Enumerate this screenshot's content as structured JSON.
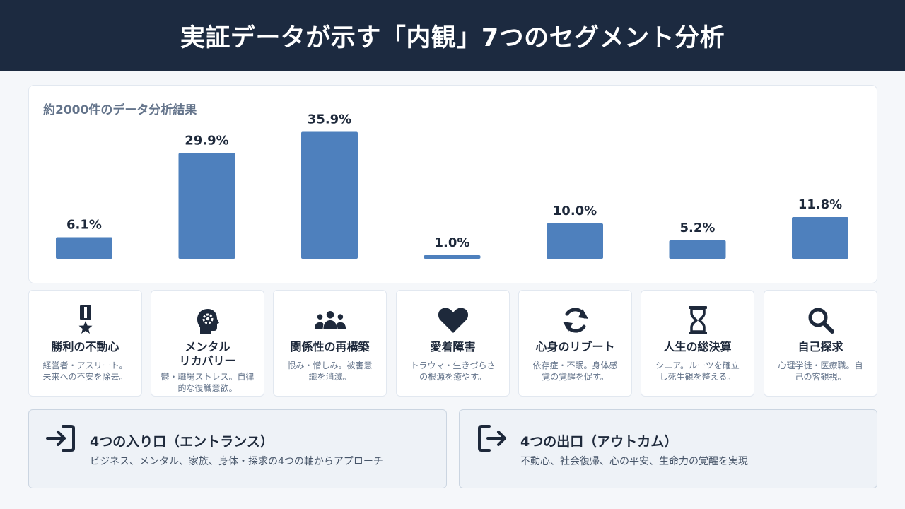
{
  "header": {
    "title": "実証データが示す「内観」7つのセグメント分析"
  },
  "chart_data": {
    "type": "bar",
    "title": "約2000件のデータ分析結果",
    "categories": [
      "勝利の不動心",
      "メンタルリカバリー",
      "関係性の再構築",
      "愛着障害",
      "心身のリブート",
      "人生の総決算",
      "自己探求"
    ],
    "values": [
      6.1,
      29.9,
      35.9,
      1.0,
      10.0,
      5.2,
      11.8
    ],
    "labels": [
      "6.1%",
      "29.9%",
      "35.9%",
      "1.0%",
      "10.0%",
      "5.2%",
      "11.8%"
    ],
    "unit": "%",
    "bar_color": "#4e80bd",
    "ylim": [
      0,
      36
    ]
  },
  "segments": [
    {
      "icon": "medal-icon",
      "name_lines": [
        "勝利の不動心"
      ],
      "desc_lines": [
        "経営者・アスリート。",
        "未来への不安を除去。"
      ]
    },
    {
      "icon": "head-gear-icon",
      "name_lines": [
        "メンタル",
        "リカバリー"
      ],
      "desc_lines": [
        "鬱・職場ストレス。自律",
        "的な復職意欲。"
      ]
    },
    {
      "icon": "people-group-icon",
      "name_lines": [
        "関係性の再構築"
      ],
      "desc_lines": [
        "恨み・憎しみ。被害意",
        "識を消滅。"
      ]
    },
    {
      "icon": "heart-icon",
      "name_lines": [
        "愛着障害"
      ],
      "desc_lines": [
        "トラウマ・生きづらさ",
        "の根源を癒やす。"
      ]
    },
    {
      "icon": "refresh-icon",
      "name_lines": [
        "心身のリブート"
      ],
      "desc_lines": [
        "依存症・不眠。身体感",
        "覚の覚醒を促す。"
      ]
    },
    {
      "icon": "hourglass-icon",
      "name_lines": [
        "人生の総決算"
      ],
      "desc_lines": [
        "シニア。ルーツを確立",
        "し死生観を整える。"
      ]
    },
    {
      "icon": "search-icon",
      "name_lines": [
        "自己探求"
      ],
      "desc_lines": [
        "心理学徒・医療職。自",
        "己の客観視。"
      ]
    }
  ],
  "entrance": {
    "icon": "sign-in-icon",
    "title": "4つの入り口（エントランス）",
    "subtitle": "ビジネス、メンタル、家族、身体・探求の4つの軸からアプローチ"
  },
  "exit": {
    "icon": "sign-out-icon",
    "title": "4つの出口（アウトカム）",
    "subtitle": "不動心、社会復帰、心の平安、生命力の覚醒を実現"
  },
  "colors": {
    "header_bg": "#1c2a40",
    "bar": "#4e80bd",
    "icon": "#1e293b"
  }
}
